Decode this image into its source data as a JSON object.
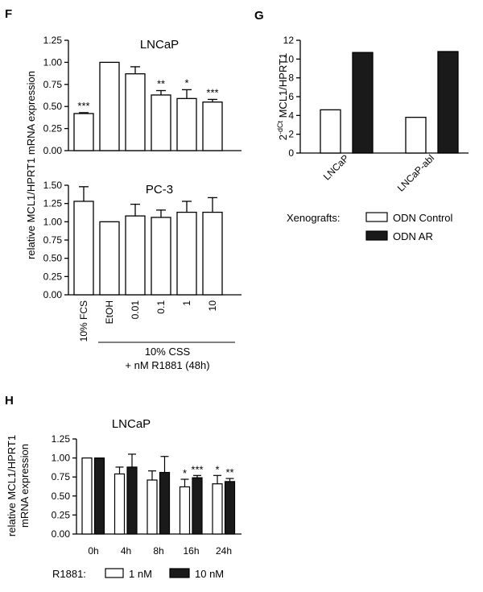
{
  "panels": {
    "F": "F",
    "G": "G",
    "H": "H"
  },
  "chart_data": [
    {
      "id": "F_LNCaP",
      "type": "bar",
      "title": "LNCaP",
      "ylabel": "relative MCL1/HPRT1 mRNA expression",
      "ylim": [
        0,
        1.25
      ],
      "yticks": [
        "0.00",
        "0.25",
        "0.50",
        "0.75",
        "1.00",
        "1.25"
      ],
      "categories": [
        "10% FCS",
        "EtOH",
        "0.01",
        "0.1",
        "1",
        "10"
      ],
      "values": [
        0.42,
        1.0,
        0.87,
        0.63,
        0.59,
        0.55
      ],
      "errors": [
        0.01,
        0.0,
        0.08,
        0.05,
        0.1,
        0.03
      ],
      "significance": [
        "***",
        "",
        "",
        "**",
        "*",
        "***"
      ]
    },
    {
      "id": "F_PC3",
      "type": "bar",
      "title": "PC-3",
      "ylim": [
        0,
        1.5
      ],
      "yticks": [
        "0.00",
        "0.25",
        "0.50",
        "0.75",
        "1.00",
        "1.25",
        "1.50"
      ],
      "categories": [
        "10% FCS",
        "EtOH",
        "0.01",
        "0.1",
        "1",
        "10"
      ],
      "values": [
        1.28,
        1.0,
        1.08,
        1.06,
        1.13,
        1.13
      ],
      "errors": [
        0.2,
        0.0,
        0.16,
        0.1,
        0.15,
        0.2
      ],
      "group_label_line1": "10% CSS",
      "group_label_line2": "+ nM R1881 (48h)"
    },
    {
      "id": "G",
      "type": "bar",
      "ylabel_main": "2",
      "ylabel_sup": "-dCt",
      "ylabel_rest": " MCL1/HPRT1",
      "ylim": [
        0,
        12
      ],
      "yticks": [
        "0",
        "2",
        "4",
        "6",
        "8",
        "10",
        "12"
      ],
      "categories": [
        "LNCaP",
        "LNCaP-abl"
      ],
      "series": [
        {
          "name": "ODN Control",
          "values": [
            4.6,
            3.8
          ],
          "color": "#ffffff"
        },
        {
          "name": "ODN AR",
          "values": [
            10.7,
            10.8
          ],
          "color": "#1a1a1a"
        }
      ],
      "legend_title": "Xenografts:"
    },
    {
      "id": "H",
      "type": "bar",
      "title": "LNCaP",
      "ylabel_line1": "relative MCL1/HPRT1",
      "ylabel_line2": "mRNA expression",
      "ylim": [
        0,
        1.25
      ],
      "yticks": [
        "0.00",
        "0.25",
        "0.50",
        "0.75",
        "1.00",
        "1.25"
      ],
      "categories": [
        "0h",
        "4h",
        "8h",
        "16h",
        "24h"
      ],
      "series": [
        {
          "name": "1 nM",
          "values": [
            1.0,
            0.79,
            0.71,
            0.62,
            0.66
          ],
          "errors": [
            0.0,
            0.09,
            0.12,
            0.1,
            0.11
          ],
          "significance": [
            "",
            "",
            "",
            "*",
            "*"
          ],
          "color": "#ffffff"
        },
        {
          "name": "10 nM",
          "values": [
            1.0,
            0.88,
            0.81,
            0.74,
            0.69
          ],
          "errors": [
            0.0,
            0.17,
            0.21,
            0.03,
            0.04
          ],
          "significance": [
            "",
            "",
            "",
            "***",
            "**"
          ],
          "color": "#1a1a1a"
        }
      ],
      "legend_title": "R1881:"
    }
  ]
}
